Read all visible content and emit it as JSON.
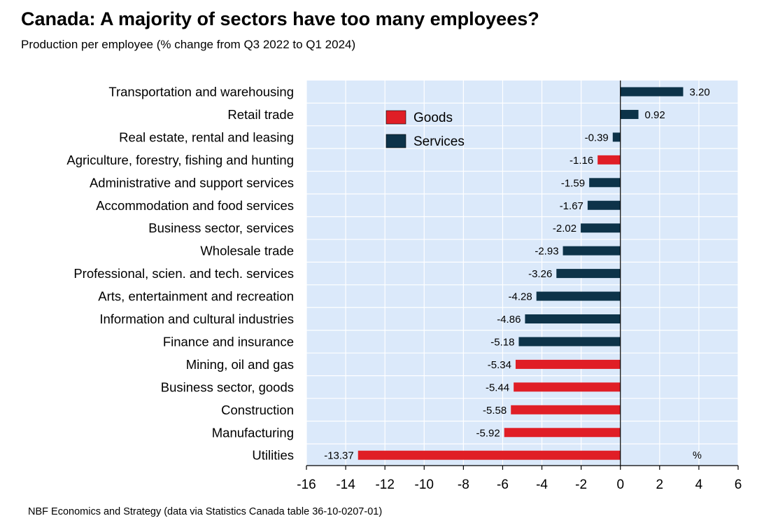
{
  "title": "Canada: A majority of sectors have too many employees?",
  "subtitle": "Production per employee (% change from Q3 2022 to Q1 2024)",
  "footer": "NBF Economics and Strategy (data via Statistics Canada table 36-10-0207-01)",
  "colors": {
    "goods": "#e01e26",
    "services": "#0d3349",
    "plot_background": "#dbe9fa",
    "grid": "#ffffff"
  },
  "chart_data": {
    "type": "bar",
    "orientation": "horizontal",
    "title": "Canada: A majority of sectors have too many employees?",
    "subtitle": "Production per employee (% change from Q3 2022 to Q1 2024)",
    "xlabel": "",
    "ylabel": "",
    "unit_label": "%",
    "xlim": [
      -16,
      6
    ],
    "x_ticks": [
      -16,
      -14,
      -12,
      -10,
      -8,
      -6,
      -4,
      -2,
      0,
      2,
      4,
      6
    ],
    "grid": true,
    "legend": {
      "position": "top-center",
      "entries": [
        {
          "label": "Goods",
          "group": "goods"
        },
        {
          "label": "Services",
          "group": "services"
        }
      ]
    },
    "categories": [
      "Transportation and warehousing",
      "Retail trade",
      "Real estate, rental and leasing",
      "Agriculture, forestry, fishing and hunting",
      "Administrative and support services",
      "Accommodation and food services",
      "Business sector, services",
      "Wholesale trade",
      "Professional, scien. and tech. services",
      "Arts, entertainment and recreation",
      "Information and cultural industries",
      "Finance and insurance",
      "Mining, oil and gas",
      "Business sector, goods",
      "Construction",
      "Manufacturing",
      "Utilities"
    ],
    "values": [
      3.2,
      0.92,
      -0.39,
      -1.16,
      -1.59,
      -1.67,
      -2.02,
      -2.93,
      -3.26,
      -4.28,
      -4.86,
      -5.18,
      -5.34,
      -5.44,
      -5.58,
      -5.92,
      -13.37
    ],
    "value_labels": [
      "3.20",
      "0.92",
      "-0.39",
      "-1.16",
      "-1.59",
      "-1.67",
      "-2.02",
      "-2.93",
      "-3.26",
      "-4.28",
      "-4.86",
      "-5.18",
      "-5.34",
      "-5.44",
      "-5.58",
      "-5.92",
      "-13.37"
    ],
    "groups": [
      "services",
      "services",
      "services",
      "goods",
      "services",
      "services",
      "services",
      "services",
      "services",
      "services",
      "services",
      "services",
      "goods",
      "goods",
      "goods",
      "goods",
      "goods"
    ]
  }
}
